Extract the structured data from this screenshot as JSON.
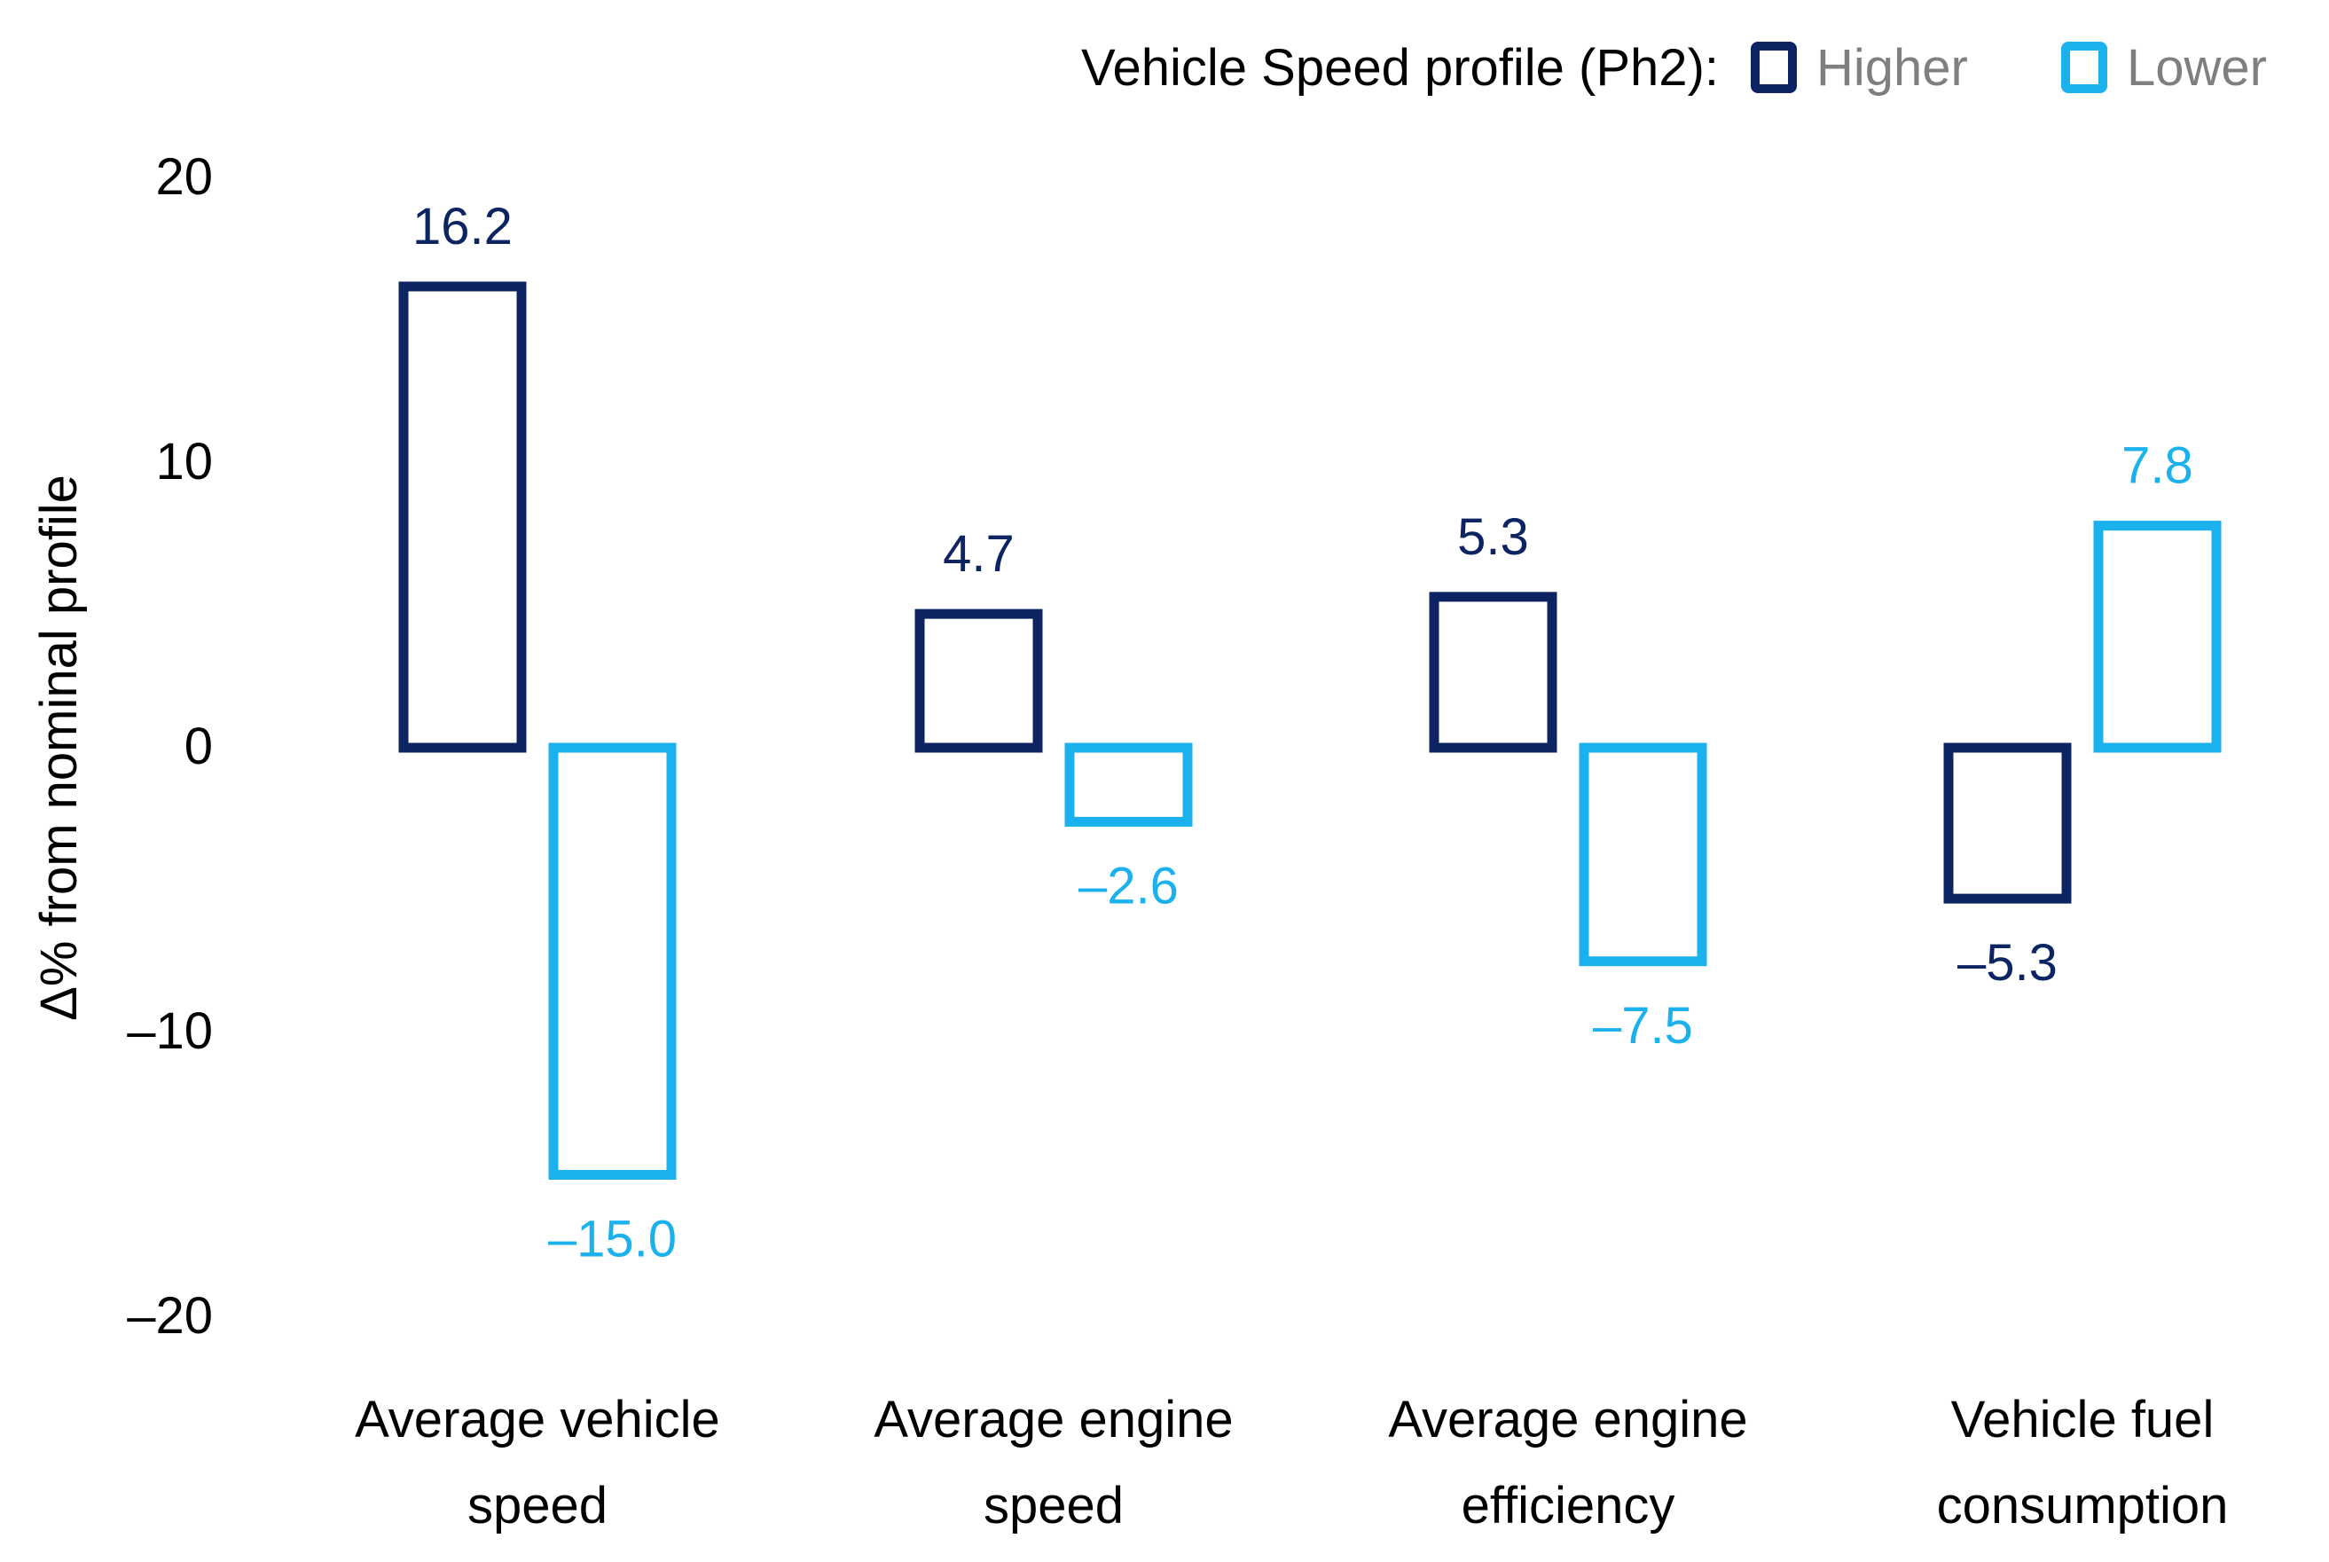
{
  "chart_data": {
    "type": "bar",
    "legend": {
      "title": "Vehicle Speed profile (Ph2):",
      "placement": "top-right"
    },
    "ylabel": "Δ% from nominal profile",
    "xlabel": "",
    "ylim": [
      -20,
      20
    ],
    "yticks": [
      {
        "value": 20,
        "label": "20"
      },
      {
        "value": 10,
        "label": "10"
      },
      {
        "value": 0,
        "label": "0"
      },
      {
        "value": -10,
        "label": "–10"
      },
      {
        "value": -20,
        "label": "–20"
      }
    ],
    "grid": false,
    "categories": [
      [
        "Average vehicle",
        "speed"
      ],
      [
        "Average engine",
        "speed"
      ],
      [
        "Average engine",
        "efficiency"
      ],
      [
        "Vehicle fuel",
        "consumption"
      ]
    ],
    "series": [
      {
        "name": "Higher",
        "color": "#0c2461",
        "values": [
          16.2,
          4.7,
          5.3,
          -5.3
        ],
        "labels": [
          "16.2",
          "4.7",
          "5.3",
          "–5.3"
        ]
      },
      {
        "name": "Lower",
        "color": "#1ab1ec",
        "values": [
          -15.0,
          -2.6,
          -7.5,
          7.8
        ],
        "labels": [
          "–15.0",
          "–2.6",
          "–7.5",
          "7.8"
        ]
      }
    ]
  }
}
